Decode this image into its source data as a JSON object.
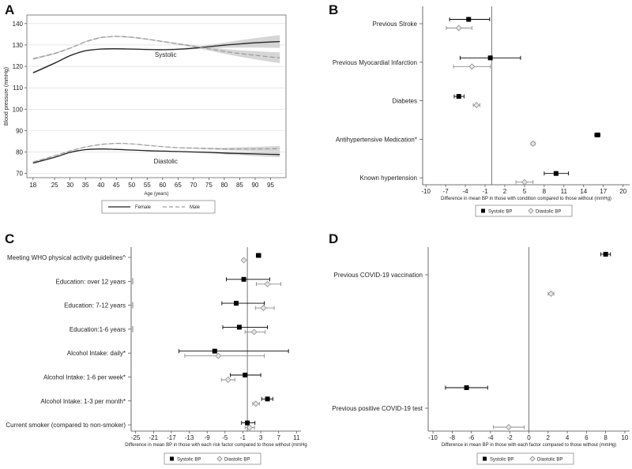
{
  "colors": {
    "frame": "#666666",
    "grid": "#d9d9d9",
    "female": "#222222",
    "male": "#9a9a9a",
    "ci": "#c8c8c8",
    "systolic": "#000000",
    "diastolic": "#8c8c8c",
    "refline": "#555555"
  },
  "chart_data": [
    {
      "panel": "A",
      "type": "line",
      "ylabel": "Blood pressure (mmHg)",
      "xlabel": "Age (years)",
      "xlim": [
        16,
        100
      ],
      "ylim": [
        68,
        144
      ],
      "xticks": [
        18,
        25,
        30,
        35,
        40,
        45,
        50,
        55,
        60,
        65,
        70,
        75,
        80,
        85,
        90,
        95
      ],
      "yticks": [
        70,
        80,
        90,
        100,
        110,
        120,
        130,
        140
      ],
      "curve_labels": [
        {
          "text": "Systolic",
          "x": 61,
          "y": 124.5
        },
        {
          "text": "Diastolic",
          "x": 61,
          "y": 74.6
        }
      ],
      "legend": [
        "Female",
        "Male"
      ],
      "series": [
        {
          "name": "Female Systolic",
          "style": "solid",
          "x": [
            18,
            25,
            30,
            35,
            40,
            45,
            50,
            55,
            60,
            65,
            70,
            75,
            80,
            85,
            90,
            95,
            98
          ],
          "y": [
            117,
            121.5,
            125,
            127.3,
            128.1,
            128.2,
            128.1,
            127.9,
            127.8,
            128,
            128.5,
            129.2,
            129.9,
            130.5,
            131,
            131.4,
            131.6
          ],
          "ci_halfwidth": [
            0.6,
            0.4,
            0.3,
            0.3,
            0.3,
            0.3,
            0.3,
            0.3,
            0.3,
            0.4,
            0.5,
            0.8,
            1.2,
            1.7,
            2.2,
            2.7,
            3
          ]
        },
        {
          "name": "Male Systolic",
          "style": "dashed",
          "x": [
            18,
            25,
            30,
            35,
            40,
            45,
            50,
            55,
            60,
            65,
            70,
            75,
            80,
            85,
            90,
            95,
            98
          ],
          "y": [
            123.5,
            126,
            128.5,
            131.5,
            133.5,
            134,
            133.6,
            132.7,
            131.6,
            130.5,
            129.4,
            128.2,
            127,
            126,
            125.2,
            124.4,
            124
          ],
          "ci_halfwidth": [
            0.5,
            0.4,
            0.3,
            0.3,
            0.3,
            0.3,
            0.3,
            0.3,
            0.3,
            0.4,
            0.5,
            0.8,
            1.1,
            1.5,
            1.9,
            2.3,
            2.5
          ]
        },
        {
          "name": "Female Diastolic",
          "style": "solid",
          "x": [
            18,
            25,
            30,
            35,
            40,
            45,
            50,
            55,
            60,
            65,
            70,
            75,
            80,
            85,
            90,
            95,
            98
          ],
          "y": [
            74.8,
            77.5,
            79.8,
            81.1,
            81.4,
            81.2,
            80.9,
            80.6,
            80.4,
            80.2,
            80,
            79.8,
            79.5,
            79.3,
            79.1,
            78.9,
            78.8
          ],
          "ci_halfwidth": [
            0.3,
            0.2,
            0.2,
            0.2,
            0.2,
            0.2,
            0.2,
            0.2,
            0.2,
            0.2,
            0.3,
            0.4,
            0.6,
            0.8,
            1,
            1.2,
            1.3
          ]
        },
        {
          "name": "Male Diastolic",
          "style": "dashed",
          "x": [
            18,
            25,
            30,
            35,
            40,
            45,
            50,
            55,
            60,
            65,
            70,
            75,
            80,
            85,
            90,
            95,
            98
          ],
          "y": [
            75.3,
            78.2,
            80.5,
            82.3,
            83.5,
            84,
            83.8,
            83.1,
            82.5,
            82,
            81.8,
            81.6,
            81.4,
            81.4,
            81.4,
            81.5,
            81.5
          ],
          "ci_halfwidth": [
            0.3,
            0.2,
            0.2,
            0.2,
            0.2,
            0.2,
            0.2,
            0.2,
            0.2,
            0.2,
            0.3,
            0.4,
            0.6,
            0.8,
            1,
            1.2,
            1.3
          ]
        }
      ]
    },
    {
      "panel": "B",
      "type": "forest",
      "xlabel": "Difference in mean BP in those with condition compared to those without (mmHg)",
      "xlim": [
        -10.5,
        21
      ],
      "xticks": [
        -10,
        -7,
        -4,
        -1,
        2,
        5,
        8,
        11,
        14,
        17,
        20
      ],
      "legend": [
        "Systolic BP",
        "Diastolic BP"
      ],
      "rows": [
        {
          "label": "Previous Stroke",
          "sys": [
            -3.5,
            -6.4,
            -0.3
          ],
          "dia": [
            -5,
            -6.9,
            -3
          ]
        },
        {
          "label": "Previous Myocardial Infarction",
          "sys": [
            -0.2,
            -4.8,
            4.4
          ],
          "dia": [
            -3,
            -5.8,
            -0.2
          ]
        },
        {
          "label": "Diabetes",
          "sys": [
            -5,
            -5.7,
            -4.2
          ],
          "dia": [
            -2.3,
            -2.8,
            -1.8
          ]
        },
        {
          "label": "Antihypertensive Medication*",
          "sys": [
            16.1,
            15.7,
            16.5
          ],
          "dia": [
            6.3,
            6,
            6.6
          ]
        },
        {
          "label": "Known hypertension",
          "sys": [
            9.8,
            8,
            11.7
          ],
          "dia": [
            5,
            3.7,
            6.3
          ]
        }
      ]
    },
    {
      "panel": "C",
      "type": "forest",
      "xlabel": "Difference in mean BP in those with each risk factor compared to those without (mmHg",
      "xlim": [
        -26,
        12
      ],
      "xticks": [
        -25,
        -21,
        -17,
        -13,
        -9,
        -5,
        -1,
        3,
        7,
        11
      ],
      "legend": [
        "Systolic BP",
        "Diastolic BP"
      ],
      "rows": [
        {
          "label": "Meeting WHO physical activity guidelines^",
          "sys": [
            2.5,
            2,
            3
          ],
          "dia": [
            -0.8,
            -0.9,
            -0.7
          ]
        },
        {
          "label": "Education: over 12 years",
          "sys": [
            -0.8,
            -4.7,
            5
          ],
          "dia": [
            4.5,
            2,
            7.5
          ]
        },
        {
          "label": "Education: 7-12 years",
          "sys": [
            -2.5,
            -5.7,
            3.8
          ],
          "dia": [
            3.6,
            1.8,
            6
          ]
        },
        {
          "label": "Education:1-6 years",
          "sys": [
            -1.8,
            -5.5,
            4.5
          ],
          "dia": [
            1.5,
            -0.5,
            4
          ]
        },
        {
          "label": "Alcohol Intake: daily*",
          "sys": [
            -7.3,
            -15.3,
            9.2
          ],
          "dia": [
            -6.5,
            -14,
            3.8
          ]
        },
        {
          "label": "Alcohol Intake: 1-6 per week*",
          "sys": [
            -0.5,
            -3.8,
            3
          ],
          "dia": [
            -4.3,
            -5.8,
            -2.8
          ]
        },
        {
          "label": "Alcohol Intake: 1-3 per month*",
          "sys": [
            4.5,
            3.2,
            5.7
          ],
          "dia": [
            1.9,
            1.2,
            2.7
          ]
        },
        {
          "label": "Current smoker (compared to non-smoker)",
          "sys": [
            0,
            -1.3,
            1.7
          ],
          "dia": [
            0.5,
            -0.5,
            1.6
          ]
        }
      ]
    },
    {
      "panel": "D",
      "type": "forest",
      "xlabel": "Difference in mean BP in those with each factor compared to those without (mmHg)",
      "xlim": [
        -10.5,
        10.5
      ],
      "xticks": [
        -10,
        -8,
        -6,
        -4,
        -2,
        0,
        2,
        4,
        6,
        8,
        10
      ],
      "legend": [
        "Systolic BP",
        "Diastolic BP"
      ],
      "rows": [
        {
          "label": "Previous COVID-19 vaccination",
          "sys": [
            8,
            7.5,
            8.5
          ],
          "dia": [
            2.3,
            2,
            2.6
          ]
        },
        {
          "label": "Previous positive COVID-19 test",
          "sys": [
            -6.5,
            -8.7,
            -4.3
          ],
          "dia": [
            -2.1,
            -3.7,
            -0.5
          ]
        }
      ]
    }
  ]
}
